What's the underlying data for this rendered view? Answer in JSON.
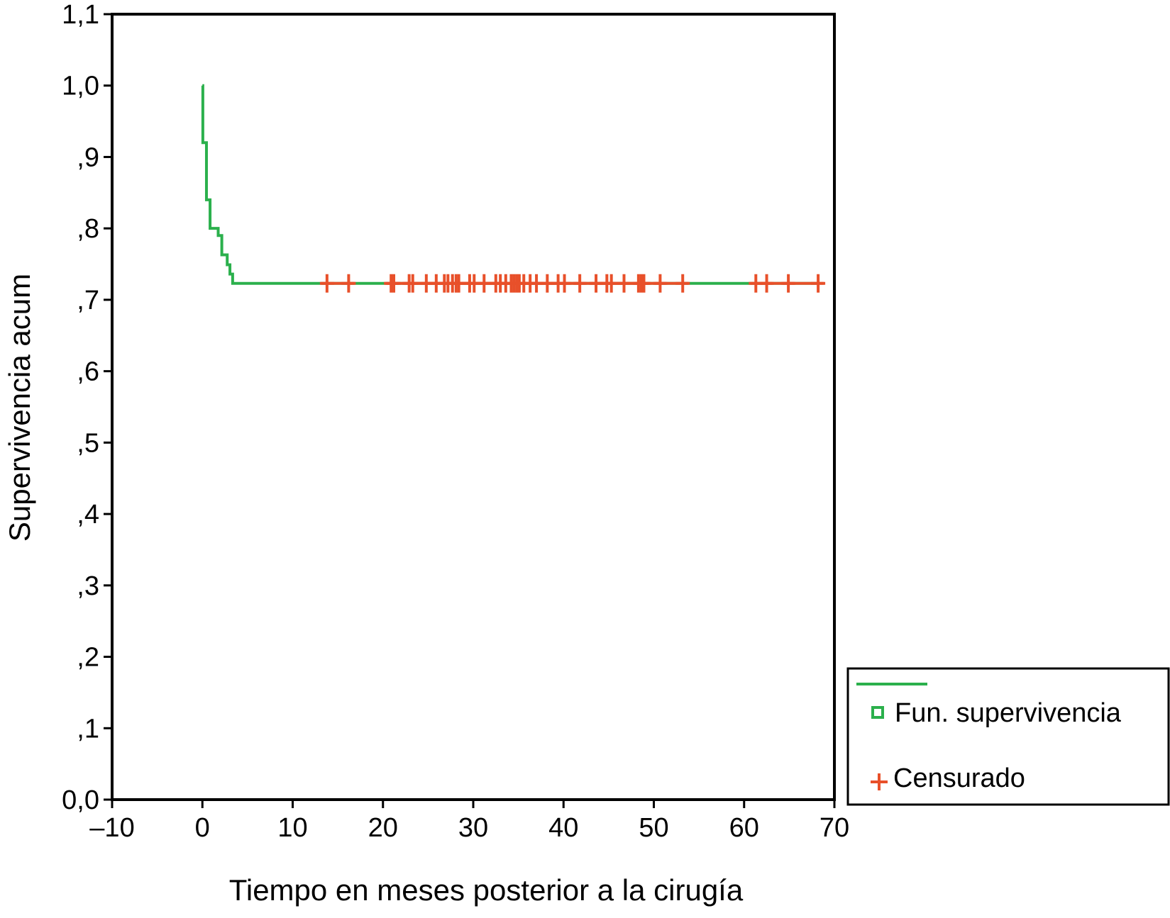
{
  "chart_data": {
    "type": "line",
    "title": "",
    "xlabel": "Tiempo en meses posterior a la cirugía",
    "ylabel": "Supervivencia acum",
    "xlim": [
      -10,
      70
    ],
    "ylim": [
      0.0,
      1.1
    ],
    "x_ticks": [
      -10,
      0,
      10,
      20,
      30,
      40,
      50,
      60,
      70
    ],
    "x_tick_labels": [
      "–10",
      "0",
      "10",
      "20",
      "30",
      "40",
      "50",
      "60",
      "70"
    ],
    "y_ticks": [
      0.0,
      0.1,
      0.2,
      0.3,
      0.4,
      0.5,
      0.6,
      0.7,
      0.8,
      0.9,
      1.0,
      1.1
    ],
    "y_tick_labels": [
      "0,0",
      ",1",
      ",2",
      ",3",
      ",4",
      ",5",
      ",6",
      ",7",
      ",8",
      ",9",
      "1,0",
      "1,1"
    ],
    "grid": false,
    "legend_position": "bottom-right, outside plot",
    "colors": {
      "survival": "#2bb04c",
      "censored": "#e8502a",
      "axis": "#000000"
    },
    "series": [
      {
        "name": "Fun. supervivencia",
        "kind": "step",
        "color": "#2bb04c",
        "points": [
          [
            0,
            1.0
          ],
          [
            0.05,
            0.92
          ],
          [
            0.4,
            0.92
          ],
          [
            0.45,
            0.84
          ],
          [
            0.8,
            0.84
          ],
          [
            0.85,
            0.8
          ],
          [
            1.7,
            0.8
          ],
          [
            1.75,
            0.79
          ],
          [
            2.1,
            0.79
          ],
          [
            2.15,
            0.763
          ],
          [
            2.7,
            0.763
          ],
          [
            2.75,
            0.749
          ],
          [
            3.0,
            0.749
          ],
          [
            3.05,
            0.736
          ],
          [
            3.3,
            0.736
          ],
          [
            3.35,
            0.723
          ],
          [
            68.2,
            0.723
          ]
        ]
      },
      {
        "name": "Censurado",
        "kind": "censor-marks",
        "color": "#e8502a",
        "y": 0.723,
        "x": [
          13.8,
          16.2,
          20.9,
          21.2,
          22.9,
          23.3,
          24.8,
          25.9,
          26.8,
          27.2,
          27.7,
          28.1,
          28.4,
          29.6,
          30.1,
          31.2,
          32.5,
          33.0,
          33.6,
          34.2,
          34.5,
          34.8,
          35.1,
          35.6,
          36.3,
          37.0,
          38.2,
          39.4,
          40.1,
          41.8,
          43.6,
          44.8,
          45.3,
          46.7,
          48.3,
          48.6,
          48.9,
          50.7,
          53.2,
          61.3,
          62.5,
          64.9,
          68.2
        ]
      }
    ]
  },
  "legend": {
    "items": [
      {
        "label": "Fun. supervivencia",
        "marker": "line-and-square",
        "color": "#2bb04c"
      },
      {
        "label": "Censurado",
        "marker": "plus",
        "color": "#e8502a"
      }
    ]
  }
}
